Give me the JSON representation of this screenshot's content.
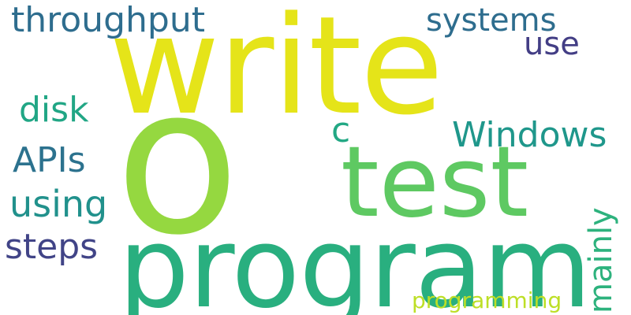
{
  "words": [
    {
      "text": "write",
      "color": "#e5e419"
    },
    {
      "text": "o",
      "color": "#95d840"
    },
    {
      "text": "program",
      "color": "#29af7f"
    },
    {
      "text": "test",
      "color": "#5ec962"
    },
    {
      "text": "throughput",
      "color": "#2e6d8e"
    },
    {
      "text": "systems",
      "color": "#2e6d8e"
    },
    {
      "text": "use",
      "color": "#433e85"
    },
    {
      "text": "disk",
      "color": "#21a685"
    },
    {
      "text": "c",
      "color": "#22a884"
    },
    {
      "text": "Windows",
      "color": "#1f978b"
    },
    {
      "text": "APIs",
      "color": "#2c728e"
    },
    {
      "text": "using",
      "color": "#21918c"
    },
    {
      "text": "mainly",
      "color": "#2db27d"
    },
    {
      "text": "steps",
      "color": "#414487"
    },
    {
      "text": "programming",
      "color": "#bddf26"
    }
  ]
}
